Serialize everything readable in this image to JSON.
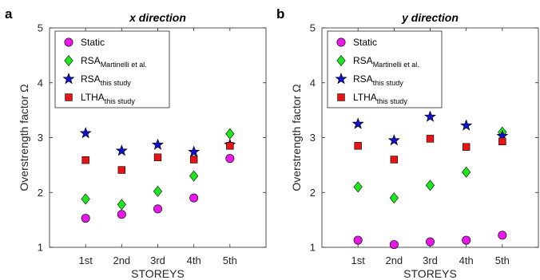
{
  "chart_data": [
    {
      "type": "scatter",
      "panel_letter": "a",
      "title": "x direction",
      "xlabel": "STOREYS",
      "ylabel": "Overstrength factor Ω",
      "categories": [
        "1st",
        "2nd",
        "3rd",
        "4th",
        "5th"
      ],
      "ylim": [
        1,
        5
      ],
      "yticks": [
        "1",
        "2",
        "3",
        "4",
        "5"
      ],
      "grid": false,
      "legend_position": "top-left",
      "series": [
        {
          "name": "Static",
          "name_sub": "",
          "marker": "circle",
          "color": "#e619e6",
          "values": [
            1.53,
            1.6,
            1.7,
            1.9,
            2.62
          ]
        },
        {
          "name": "RSA",
          "name_sub": "Martinelli et al.",
          "marker": "diamond",
          "color": "#1ee61e",
          "values": [
            1.88,
            1.78,
            2.02,
            2.3,
            3.07
          ]
        },
        {
          "name": "RSA",
          "name_sub": "this study",
          "marker": "star",
          "color": "#1010c8",
          "values": [
            3.08,
            2.76,
            2.87,
            2.74,
            2.87
          ]
        },
        {
          "name": "LTHA",
          "name_sub": "this study",
          "marker": "square",
          "color": "#e61414",
          "values": [
            2.59,
            2.41,
            2.64,
            2.6,
            2.85
          ]
        }
      ]
    },
    {
      "type": "scatter",
      "panel_letter": "b",
      "title": "y direction",
      "xlabel": "STOREYS",
      "ylabel": "Overstrength factor Ω",
      "categories": [
        "1st",
        "2nd",
        "3rd",
        "4th",
        "5th"
      ],
      "ylim": [
        1,
        5
      ],
      "yticks": [
        "1",
        "2",
        "3",
        "4",
        "5"
      ],
      "grid": false,
      "legend_position": "top-left",
      "series": [
        {
          "name": "Static",
          "name_sub": "",
          "marker": "circle",
          "color": "#e619e6",
          "values": [
            1.13,
            1.05,
            1.1,
            1.13,
            1.22
          ]
        },
        {
          "name": "RSA",
          "name_sub": "Martinelli et al.",
          "marker": "diamond",
          "color": "#1ee61e",
          "values": [
            2.1,
            1.9,
            2.13,
            2.37,
            3.1
          ]
        },
        {
          "name": "RSA",
          "name_sub": "this study",
          "marker": "star",
          "color": "#1010c8",
          "values": [
            3.25,
            2.95,
            3.38,
            3.22,
            3.03
          ]
        },
        {
          "name": "LTHA",
          "name_sub": "this study",
          "marker": "square",
          "color": "#e61414",
          "values": [
            2.85,
            2.6,
            2.98,
            2.83,
            2.93
          ]
        }
      ]
    }
  ]
}
